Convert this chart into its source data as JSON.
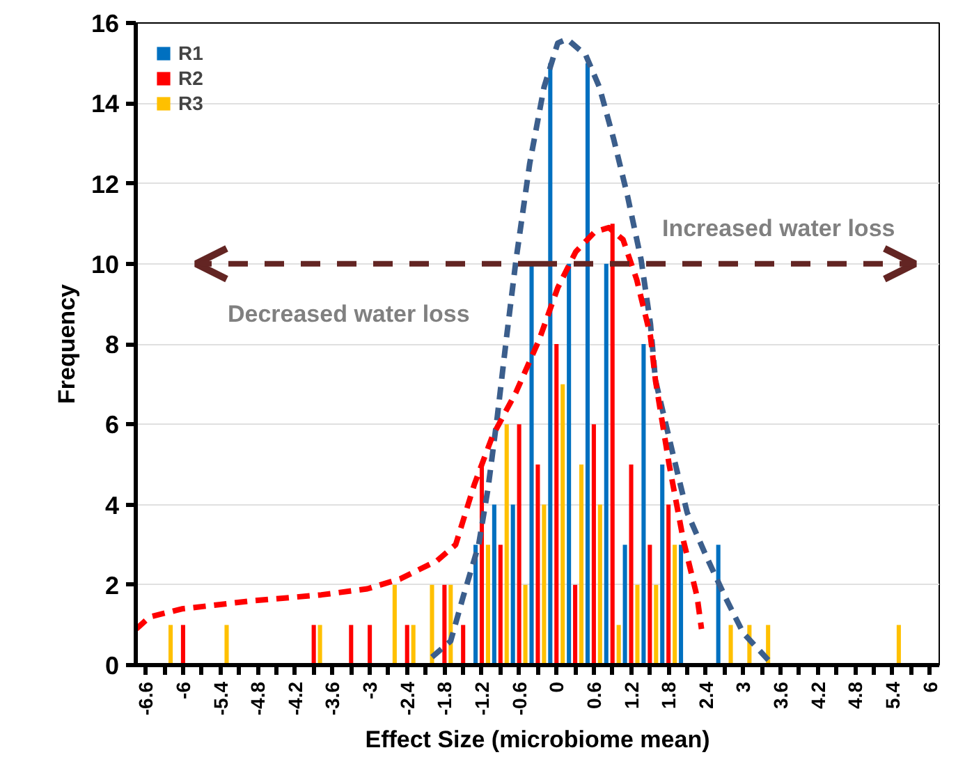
{
  "chart_data": {
    "type": "bar",
    "xlabel": "Effect Size (microbiome mean)",
    "ylabel": "Frequency",
    "xlim": [
      -6.76,
      6.15
    ],
    "ylim": [
      0,
      16
    ],
    "xticks": [
      -6.6,
      {
        "value": -6.3,
        "label": null
      },
      -6,
      {
        "value": -5.7,
        "label": null
      },
      -5.4,
      {
        "value": -5.1,
        "label": null
      },
      -4.8,
      {
        "value": -4.5,
        "label": null
      },
      -4.2,
      {
        "value": -3.9,
        "label": null
      },
      -3.6,
      {
        "value": -3.3,
        "label": null
      },
      -3,
      {
        "value": -2.7,
        "label": null
      },
      -2.4,
      {
        "value": -2.1,
        "label": null
      },
      -1.8,
      {
        "value": -1.5,
        "label": null
      },
      -1.2,
      {
        "value": -0.9,
        "label": null
      },
      -0.6,
      {
        "value": -0.3,
        "label": null
      },
      0,
      {
        "value": 0.3,
        "label": null
      },
      0.6,
      {
        "value": 0.9,
        "label": null
      },
      1.2,
      {
        "value": 1.5,
        "label": null
      },
      1.8,
      {
        "value": 2.1,
        "label": null
      },
      2.4,
      {
        "value": 2.7,
        "label": null
      },
      3,
      {
        "value": 3.3,
        "label": null
      },
      3.6,
      {
        "value": 3.9,
        "label": null
      },
      4.2,
      {
        "value": 4.5,
        "label": null
      },
      4.8,
      {
        "value": 5.1,
        "label": null
      },
      5.4,
      {
        "value": 5.7,
        "label": null
      },
      6
    ],
    "yticks": [
      0,
      2,
      4,
      6,
      8,
      10,
      12,
      14,
      16
    ],
    "grid": "y",
    "legend": "top left",
    "annotations": [
      "Increased water loss",
      "Decreased water loss"
    ],
    "series": [
      {
        "name": "R1",
        "color": "#0070c0",
        "x": [
          -1.2,
          -0.9,
          -0.6,
          -0.3,
          0,
          0.3,
          0.6,
          0.9,
          1.2,
          1.5,
          1.8,
          2.1,
          2.7
        ],
        "values": [
          3,
          4,
          4,
          10,
          15,
          10,
          15,
          10,
          3,
          8,
          5,
          3,
          3
        ]
      },
      {
        "name": "R2",
        "color": "#ff0000",
        "x": [
          -6.0,
          -3.9,
          -3.3,
          -3.0,
          -2.4,
          -1.8,
          -1.5,
          -1.2,
          -0.9,
          -0.6,
          -0.3,
          0,
          0.3,
          0.6,
          0.9,
          1.2,
          1.5,
          1.8
        ],
        "values": [
          1,
          1,
          1,
          1,
          1,
          2,
          1,
          5,
          3,
          6,
          5,
          8,
          2,
          6,
          11,
          5,
          3,
          4
        ]
      },
      {
        "name": "R3",
        "color": "#ffc000",
        "x": [
          -6.3,
          -5.4,
          -3.9,
          -2.7,
          -2.4,
          -2.1,
          -1.8,
          -1.2,
          -0.9,
          -0.6,
          -0.3,
          0,
          0.3,
          0.6,
          0.9,
          1.2,
          1.5,
          1.8,
          2.7,
          3.0,
          3.3,
          5.4
        ],
        "values": [
          1,
          1,
          1,
          2,
          1,
          2,
          2,
          3,
          6,
          2,
          4,
          7,
          5,
          4,
          1,
          2,
          2,
          3,
          1,
          1,
          1,
          1
        ]
      },
      {
        "type": "line",
        "line_style": "dashed",
        "marker": "none",
        "color": "#3b5e8c",
        "x": [
          -2.0,
          -1.7,
          -1.5,
          -1.25,
          -1.1,
          -0.95,
          -0.8,
          -0.65,
          -0.43,
          -0.2,
          0.02,
          0.17,
          0.47,
          0.69,
          0.92,
          1.14,
          1.36,
          1.51,
          1.59,
          1.88,
          2.1,
          2.41,
          2.71,
          3.0,
          3.42
        ],
        "values": [
          0.2,
          0.6,
          1.7,
          3.0,
          4.4,
          6.2,
          8.2,
          10.1,
          12.5,
          14.4,
          15.5,
          15.6,
          15.2,
          14.4,
          13.1,
          11.7,
          10.1,
          8.5,
          7.1,
          5.2,
          3.8,
          2.7,
          1.7,
          0.8,
          0.1
        ]
      },
      {
        "type": "line",
        "line_style": "dashed",
        "marker": "none",
        "color": "#ff0000",
        "x": [
          -6.75,
          -6.54,
          -6.02,
          -4.9,
          -3.78,
          -3.04,
          -2.51,
          -1.92,
          -1.62,
          -1.32,
          -1.03,
          -0.65,
          -0.28,
          0.02,
          0.31,
          0.62,
          0.84,
          1.07,
          1.29,
          1.51,
          1.59,
          1.81,
          2.04,
          2.26,
          2.33
        ],
        "values": [
          0.9,
          1.2,
          1.4,
          1.6,
          1.75,
          1.9,
          2.15,
          2.6,
          3.0,
          4.5,
          5.7,
          6.8,
          8.1,
          9.4,
          10.3,
          10.8,
          10.9,
          10.6,
          9.6,
          8.2,
          7.1,
          5.0,
          3.1,
          1.7,
          0.9
        ]
      }
    ]
  }
}
